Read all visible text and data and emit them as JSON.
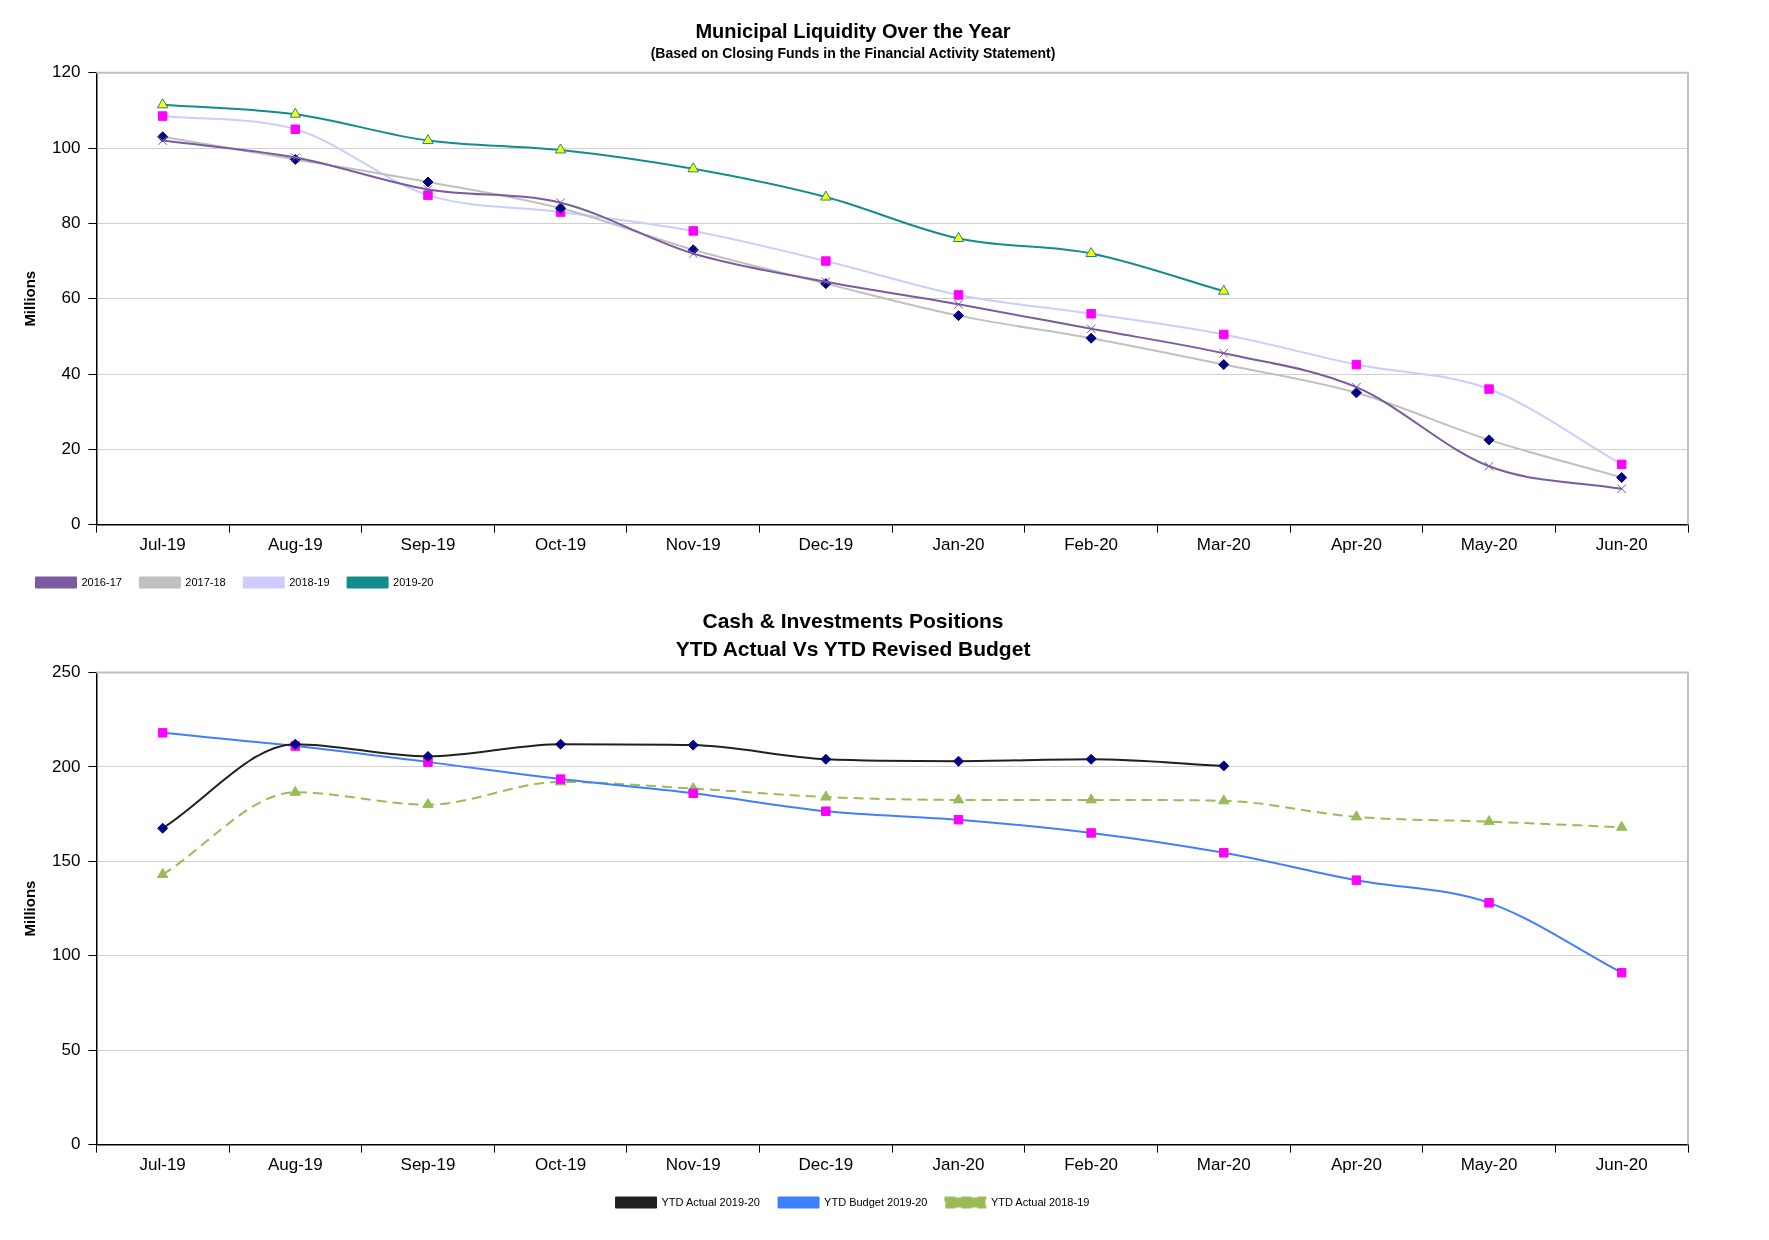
{
  "chart_data": [
    {
      "type": "line",
      "title": "Municipal Liquidity Over the Year",
      "subtitle": "(Based on Closing Funds in the Financial Activity Statement)",
      "ylabel": "Millions",
      "categories": [
        "Jul-19",
        "Aug-19",
        "Sep-19",
        "Oct-19",
        "Nov-19",
        "Dec-19",
        "Jan-20",
        "Feb-20",
        "Mar-20",
        "Apr-20",
        "May-20",
        "Jun-20"
      ],
      "ylim": [
        0,
        120
      ],
      "yticks": [
        0,
        20,
        40,
        60,
        80,
        100,
        120
      ],
      "grid": "y",
      "legend": "bottom left",
      "series": [
        {
          "name": "2016-17",
          "color": "#7a5aa0",
          "marker": "cross",
          "colors": [
            "#7a5aa0",
            "#7a5aa0",
            "#7a5aa0",
            "#7a5aa0",
            "#7a5aa0",
            "#7a5aa0",
            "#7a5aa0",
            "#7a5aa0",
            "#7a5aa0",
            "#7a5aa0",
            "#7a5aa0",
            "#7a5aa0"
          ],
          "values": [
            102,
            97.5,
            89,
            85.5,
            72,
            64.5,
            58.5,
            52,
            45.5,
            36.5,
            15.5,
            9.5
          ]
        },
        {
          "name": "2017-18",
          "color": "#c0c0c0",
          "marker": "diamond",
          "colors": [
            "#000080",
            "#000080",
            "#000080",
            "#000080",
            "#000080",
            "#000080",
            "#000080",
            "#000080",
            "#000080",
            "#000080",
            "#000080",
            "#000080"
          ],
          "values": [
            103,
            97,
            91,
            84,
            73,
            64,
            55.5,
            49.5,
            42.5,
            35,
            22.5,
            12.5
          ]
        },
        {
          "name": "2018-19",
          "color": "#ccccff",
          "marker": "square",
          "colors": [
            "#ff00ff",
            "#ff00ff",
            "#ff00ff",
            "#ff00ff",
            "#ff00ff",
            "#ff00ff",
            "#ff00ff",
            "#ff00ff",
            "#ff00ff",
            "#ff00ff",
            "#ff00ff",
            "#ff00ff"
          ],
          "values": [
            108.5,
            105,
            87.5,
            83,
            78,
            70,
            61,
            56,
            50.5,
            42.5,
            36,
            16
          ]
        },
        {
          "name": "2019-20",
          "color": "#128c8c",
          "marker": "triangle",
          "colors": [
            "#ffff00",
            "#ffff00",
            "#ffff00",
            "#ffff00",
            "#ffff00",
            "#ffff00",
            "#ffff00",
            "#ffff00",
            "#ffff00",
            "#ffff00",
            "#ffff00",
            "#ffff00"
          ],
          "values": [
            111.5,
            109,
            102,
            99.5,
            94.5,
            87,
            76,
            72,
            62,
            null,
            null,
            null
          ]
        }
      ]
    },
    {
      "type": "line",
      "title": "Cash & Investments Positions",
      "subtitle": "YTD Actual Vs YTD Revised Budget",
      "ylabel": "Millions",
      "categories": [
        "Jul-19",
        "Aug-19",
        "Sep-19",
        "Oct-19",
        "Nov-19",
        "Dec-19",
        "Jan-20",
        "Feb-20",
        "Mar-20",
        "Apr-20",
        "May-20",
        "Jun-20"
      ],
      "ylim": [
        0,
        250
      ],
      "yticks": [
        0,
        50,
        100,
        150,
        200,
        250
      ],
      "grid": "y",
      "legend": "bottom",
      "series": [
        {
          "name": "YTD Actual 2019-20",
          "color": "#202020",
          "marker": "diamond",
          "colors": [
            "#000080",
            "#000080",
            "#000080",
            "#000080",
            "#000080",
            "#000080",
            "#000080",
            "#000080",
            "#000080",
            "#000080",
            "#000080",
            "#000080"
          ],
          "values": [
            167.5,
            212,
            205.5,
            212,
            211.5,
            204,
            203,
            204,
            200.5,
            null,
            null,
            null
          ]
        },
        {
          "name": "YTD Budget 2019-20",
          "color": "#3f7fff",
          "marker": "square",
          "colors": [
            "#ff00ff",
            "#ff00ff",
            "#ff00ff",
            "#ff00ff",
            "#ff00ff",
            "#ff00ff",
            "#ff00ff",
            "#ff00ff",
            "#ff00ff",
            "#ff00ff",
            "#ff00ff",
            "#ff00ff"
          ],
          "values": [
            218,
            211,
            202.5,
            193.5,
            186,
            176.5,
            172,
            165,
            154.5,
            140,
            128,
            91
          ]
        },
        {
          "name": "YTD Actual 2018-19",
          "color": "#9bbb59",
          "marker": "triangle",
          "line_style": "dashed",
          "colors": [
            "#9bbb59",
            "#9bbb59",
            "#9bbb59",
            "#9bbb59",
            "#9bbb59",
            "#9bbb59",
            "#9bbb59",
            "#9bbb59",
            "#9bbb59",
            "#9bbb59",
            "#9bbb59",
            "#9bbb59"
          ],
          "values": [
            143,
            186.5,
            180,
            192,
            188.5,
            184,
            182.5,
            182.5,
            182,
            173.5,
            171,
            168
          ]
        }
      ]
    }
  ]
}
